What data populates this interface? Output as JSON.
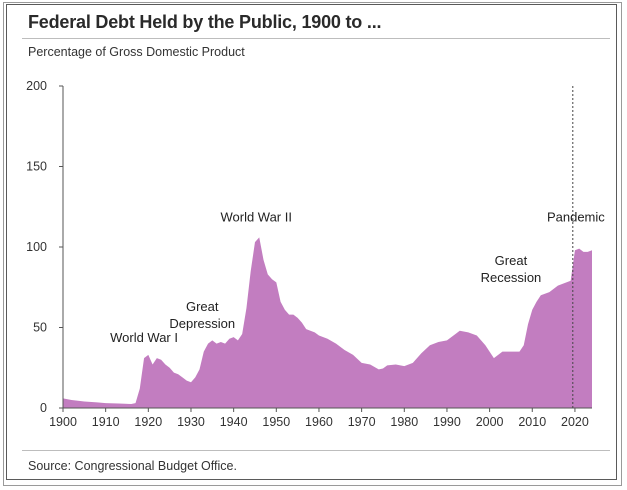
{
  "chart_data": {
    "type": "area",
    "title": "Federal Debt Held by the Public, 1900 to ...",
    "subtitle": "Percentage of Gross Domestic Product",
    "source": "Source: Congressional Budget Office.",
    "xlim": [
      1900,
      2024
    ],
    "ylim": [
      0,
      200
    ],
    "x_ticks": [
      1900,
      1910,
      1920,
      1930,
      1940,
      1950,
      1960,
      1970,
      1980,
      1990,
      2000,
      2010,
      2020
    ],
    "y_ticks": [
      0,
      50,
      100,
      150,
      200
    ],
    "fill_color": "#c27dc0",
    "marker_line_x": 2019.5,
    "annotations": [
      {
        "x": 1919,
        "y": 31,
        "lines": [
          "World War I"
        ]
      },
      {
        "x": 1931,
        "y": 43,
        "lines": [
          "Great",
          "Depression"
        ]
      },
      {
        "x": 1946,
        "y": 106,
        "lines": [
          "World War II"
        ]
      },
      {
        "x": 2005,
        "y": 69,
        "lines": [
          "Great",
          "Recession"
        ]
      },
      {
        "x": 2016,
        "y": 107,
        "lines": [
          "Pandemic"
        ]
      }
    ],
    "series": [
      {
        "x": [
          1900,
          1902,
          1905,
          1908,
          1910,
          1913,
          1916,
          1917,
          1918,
          1919,
          1920,
          1921,
          1922,
          1923,
          1924,
          1925,
          1926,
          1927,
          1928,
          1929,
          1930,
          1931,
          1932,
          1933,
          1934,
          1935,
          1936,
          1937,
          1938,
          1939,
          1940,
          1941,
          1942,
          1943,
          1944,
          1945,
          1946,
          1947,
          1948,
          1949,
          1950,
          1951,
          1952,
          1953,
          1954,
          1955,
          1956,
          1957,
          1958,
          1959,
          1960,
          1962,
          1964,
          1966,
          1968,
          1970,
          1972,
          1974,
          1975,
          1976,
          1978,
          1980,
          1982,
          1984,
          1986,
          1988,
          1990,
          1992,
          1993,
          1995,
          1997,
          1999,
          2001,
          2003,
          2005,
          2007,
          2008,
          2009,
          2010,
          2011,
          2012,
          2014,
          2016,
          2018,
          2019,
          2020,
          2021,
          2022,
          2023,
          2024
        ],
        "values": [
          6,
          5,
          4,
          3.5,
          3,
          2.8,
          2.5,
          3,
          12,
          31,
          33,
          27,
          31,
          30,
          27,
          25,
          22,
          21,
          19,
          17,
          16,
          19,
          24,
          35,
          40,
          42,
          40,
          41,
          40,
          43,
          44,
          42,
          46,
          62,
          85,
          103,
          106,
          92,
          83,
          80,
          78,
          66,
          61,
          58,
          58,
          56,
          53,
          49,
          48,
          47,
          45,
          43,
          40,
          36,
          33,
          28,
          27,
          24,
          24.5,
          26.5,
          27,
          26,
          28,
          34,
          39,
          41,
          42,
          46,
          48,
          47,
          45,
          39,
          31,
          35,
          35,
          35,
          39,
          52,
          61,
          66,
          70,
          72,
          76,
          78,
          79,
          98,
          99,
          97,
          97,
          98
        ]
      }
    ]
  }
}
